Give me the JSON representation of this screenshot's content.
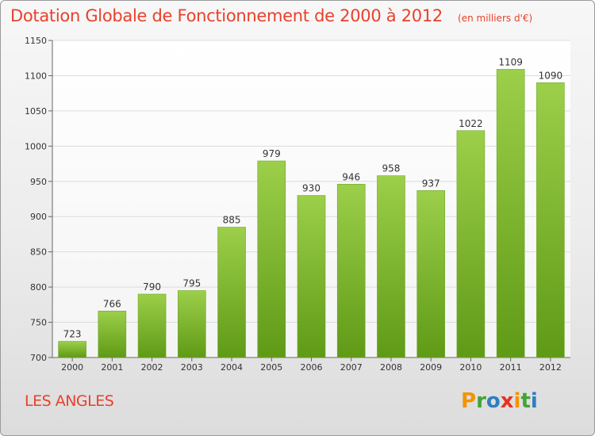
{
  "title": "Dotation Globale de Fonctionnement de 2000 à 2012",
  "unit_note": "(en milliers d'€)",
  "commune": "LES ANGLES",
  "logo": {
    "letters": [
      "P",
      "r",
      "o",
      "x",
      "i",
      "t",
      "i"
    ],
    "colors": [
      "#f29400",
      "#3fa535",
      "#2e7fc1",
      "#e53222",
      "#f29400",
      "#3fa535",
      "#2e7fc1"
    ]
  },
  "colors": {
    "bar_light": "#9ccf4a",
    "bar_dark": "#5f9a16",
    "text": "#333333",
    "title": "#e8412c"
  },
  "chart_data": {
    "type": "bar",
    "title": "Dotation Globale de Fonctionnement de 2000 à 2012",
    "subtitle": "(en milliers d'€)",
    "xlabel": "",
    "ylabel": "",
    "categories": [
      "2000",
      "2001",
      "2002",
      "2003",
      "2004",
      "2005",
      "2006",
      "2007",
      "2008",
      "2009",
      "2010",
      "2011",
      "2012"
    ],
    "values": [
      723,
      766,
      790,
      795,
      885,
      979,
      930,
      946,
      958,
      937,
      1022,
      1109,
      1090
    ],
    "ylim": [
      700,
      1150
    ],
    "yticks": [
      700,
      750,
      800,
      850,
      900,
      950,
      1000,
      1050,
      1100,
      1150
    ],
    "grid": true,
    "legend": "none"
  }
}
